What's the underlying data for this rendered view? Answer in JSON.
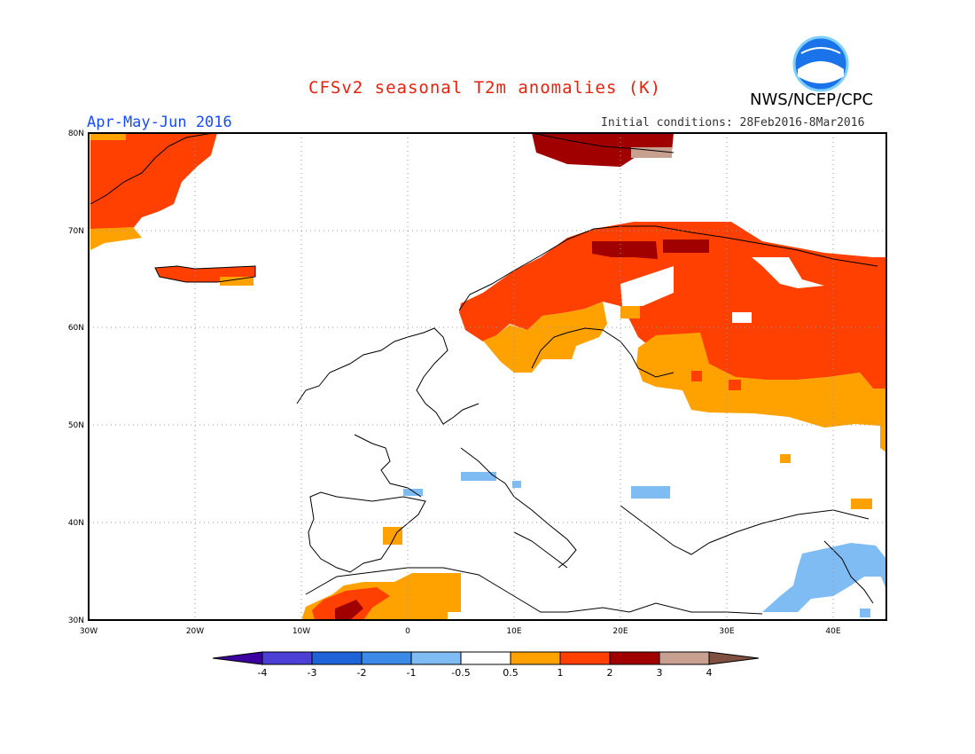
{
  "header": {
    "title": "CFSv2 seasonal T2m anomalies (K)",
    "period": "Apr-May-Jun 2016",
    "initial_conditions": "Initial conditions: 28Feb2016-8Mar2016",
    "agency": "NWS/NCEP/CPC",
    "logo_text": "NOAA"
  },
  "map": {
    "lon_ticks": [
      "30W",
      "20W",
      "10W",
      "0",
      "10E",
      "20E",
      "30E",
      "40E"
    ],
    "lat_ticks": [
      "30N",
      "40N",
      "50N",
      "60N",
      "70N",
      "80N"
    ],
    "grid": "dotted"
  },
  "colorbar": {
    "labels": [
      "-4",
      "-3",
      "-2",
      "-1",
      "-0.5",
      "0.5",
      "1",
      "2",
      "3",
      "4"
    ],
    "colors": [
      "#3c00a0",
      "#4b3fd6",
      "#1f63d8",
      "#3b8ae8",
      "#7fbcf4",
      "#ffffff",
      "#ffa200",
      "#ff4000",
      "#a00000",
      "#c8a090",
      "#805040"
    ]
  },
  "regions": [
    {
      "name": "greenland-anomaly",
      "category": "1 to 2"
    },
    {
      "name": "scandinavia-russia-anomaly",
      "category": "1 to 2"
    },
    {
      "name": "svalbard-anomaly",
      "category": "2 to 3"
    },
    {
      "name": "eastern-europe-anomaly",
      "category": "0.5 to 1"
    },
    {
      "name": "north-africa-anomaly",
      "category": "0.5 to 1"
    },
    {
      "name": "levant-anomaly",
      "category": "-1 to -0.5"
    }
  ]
}
